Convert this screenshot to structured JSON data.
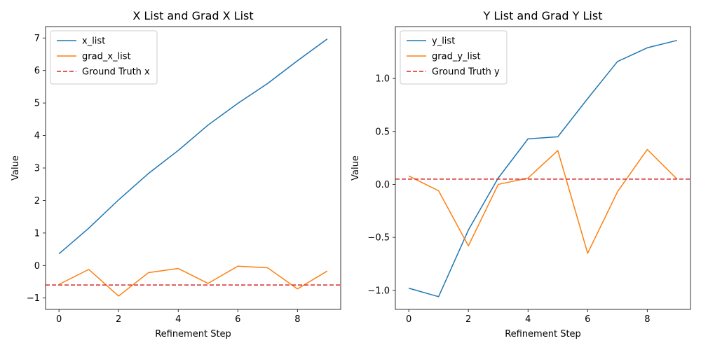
{
  "chart_data": [
    {
      "type": "line",
      "title": "X List and Grad X List",
      "xlabel": "Refinement Step",
      "ylabel": "Value",
      "x": [
        0,
        1,
        2,
        3,
        4,
        5,
        6,
        7,
        8,
        9
      ],
      "xlim": [
        -0.45,
        9.45
      ],
      "ylim": [
        -1.35,
        7.35
      ],
      "xticks": [
        0,
        2,
        4,
        6,
        8
      ],
      "yticks": [
        -1,
        0,
        1,
        2,
        3,
        4,
        5,
        6,
        7
      ],
      "ytick_labels": [
        "−1",
        "0",
        "1",
        "2",
        "3",
        "4",
        "5",
        "6",
        "7"
      ],
      "grid": false,
      "legend_position": "upper-left",
      "series": [
        {
          "name": "x_list",
          "color": "#1f77b4",
          "style": "solid",
          "values": [
            0.36,
            1.15,
            2.02,
            2.83,
            3.54,
            4.32,
            4.99,
            5.6,
            6.3,
            6.97
          ]
        },
        {
          "name": "grad_x_list",
          "color": "#ff7f0e",
          "style": "solid",
          "values": [
            -0.58,
            -0.12,
            -0.94,
            -0.22,
            -0.09,
            -0.55,
            -0.02,
            -0.07,
            -0.72,
            -0.17
          ]
        }
      ],
      "reference_lines": [
        {
          "name": "Ground Truth x",
          "color": "#d62728",
          "style": "dashed",
          "y": -0.6
        }
      ]
    },
    {
      "type": "line",
      "title": "Y List and Grad Y List",
      "xlabel": "Refinement Step",
      "ylabel": "Value",
      "x": [
        0,
        1,
        2,
        3,
        4,
        5,
        6,
        7,
        8,
        9
      ],
      "xlim": [
        -0.45,
        9.45
      ],
      "ylim": [
        -1.18,
        1.49
      ],
      "xticks": [
        0,
        2,
        4,
        6,
        8
      ],
      "yticks": [
        -1.0,
        -0.5,
        0.0,
        0.5,
        1.0
      ],
      "ytick_labels": [
        "−1.0",
        "−0.5",
        "0.0",
        "0.5",
        "1.0"
      ],
      "grid": false,
      "legend_position": "upper-left",
      "series": [
        {
          "name": "y_list",
          "color": "#1f77b4",
          "style": "solid",
          "values": [
            -0.98,
            -1.06,
            -0.43,
            0.06,
            0.43,
            0.45,
            0.81,
            1.16,
            1.29,
            1.36
          ]
        },
        {
          "name": "grad_y_list",
          "color": "#ff7f0e",
          "style": "solid",
          "values": [
            0.08,
            -0.06,
            -0.58,
            0.0,
            0.06,
            0.32,
            -0.65,
            -0.07,
            0.33,
            0.05
          ]
        }
      ],
      "reference_lines": [
        {
          "name": "Ground Truth y",
          "color": "#d62728",
          "style": "dashed",
          "y": 0.05
        }
      ]
    }
  ]
}
